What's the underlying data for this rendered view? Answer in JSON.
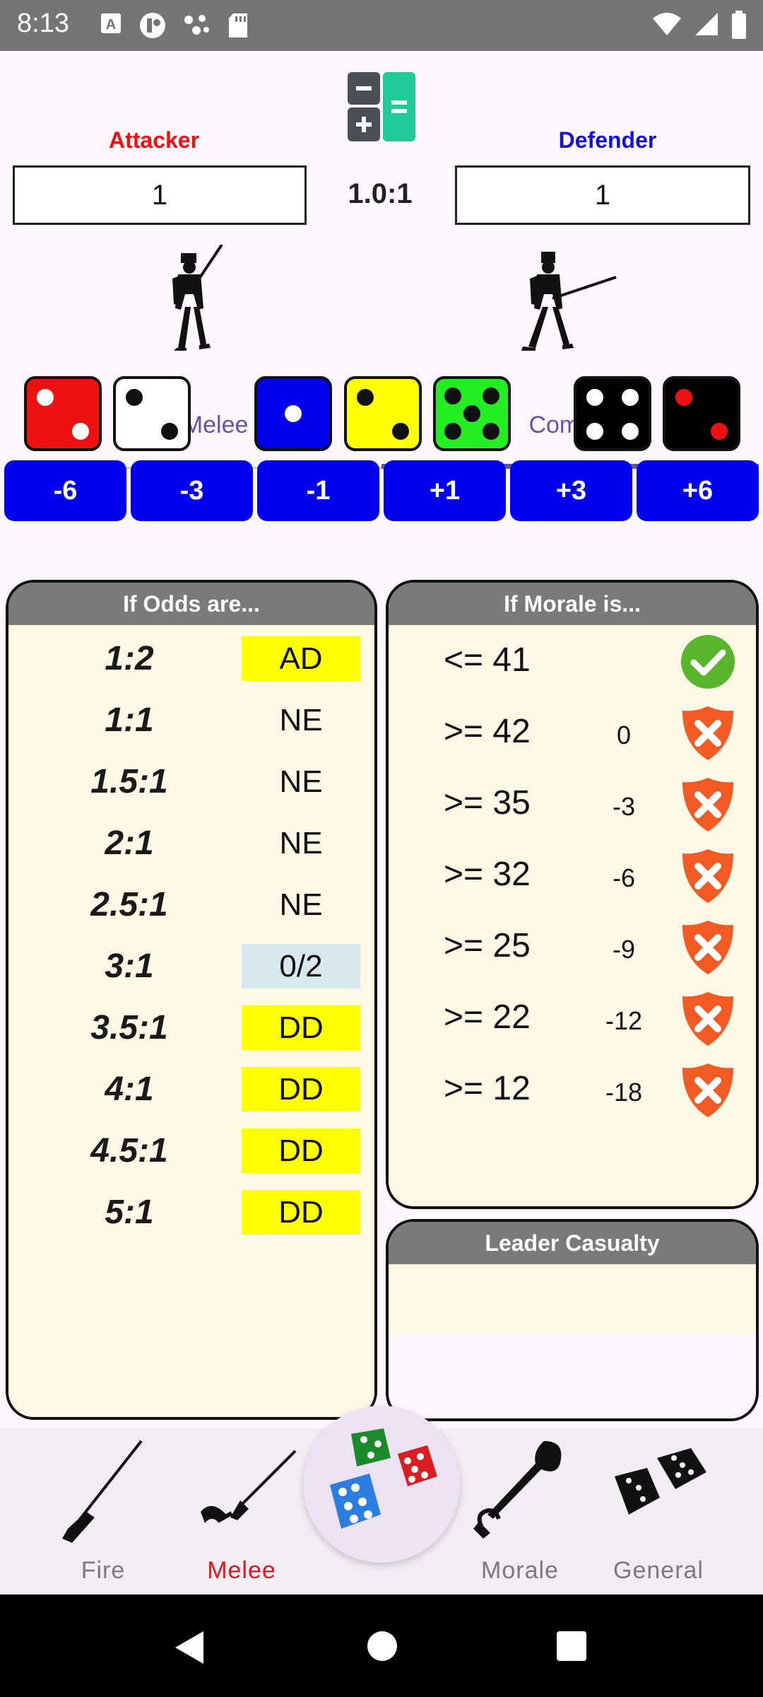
{
  "status_bar": {
    "time": "8:13",
    "icons": [
      "font-icon",
      "app-icon",
      "dots-icon",
      "sd-card-icon"
    ],
    "right_icons": [
      "wifi-icon",
      "signal-icon",
      "battery-icon"
    ]
  },
  "header": {
    "attacker_label": "Attacker",
    "defender_label": "Defender",
    "attacker_value": "1",
    "defender_value": "1",
    "ratio": "1.0:1",
    "calculator_icon": "calculator-icon",
    "attacker_color": "#ee1111",
    "defender_color": "#1111dd"
  },
  "tabs": [
    {
      "label": "Pre-Melee",
      "selected": false
    },
    {
      "label": "Combat",
      "selected": true
    }
  ],
  "dice": [
    {
      "color": "red",
      "value": 2
    },
    {
      "color": "white",
      "value": 2
    },
    {
      "color": "blue",
      "value": 1
    },
    {
      "color": "yellow",
      "value": 2
    },
    {
      "color": "green",
      "value": 5
    },
    {
      "color": "black",
      "value": 4
    },
    {
      "color": "black-red",
      "value": 2
    }
  ],
  "modifiers": [
    "-6",
    "-3",
    "-1",
    "+1",
    "+3",
    "+6"
  ],
  "odds_panel": {
    "title": "If Odds are...",
    "rows": [
      {
        "odds": "1:2",
        "result": "AD",
        "highlight": "#ffff00"
      },
      {
        "odds": "1:1",
        "result": "NE",
        "highlight": ""
      },
      {
        "odds": "1.5:1",
        "result": "NE",
        "highlight": ""
      },
      {
        "odds": "2:1",
        "result": "NE",
        "highlight": ""
      },
      {
        "odds": "2.5:1",
        "result": "NE",
        "highlight": ""
      },
      {
        "odds": "3:1",
        "result": "0/2",
        "highlight": "#d8e8f0"
      },
      {
        "odds": "3.5:1",
        "result": "DD",
        "highlight": "#ffff00"
      },
      {
        "odds": "4:1",
        "result": "DD",
        "highlight": "#ffff00"
      },
      {
        "odds": "4.5:1",
        "result": "DD",
        "highlight": "#ffff00"
      },
      {
        "odds": "5:1",
        "result": "DD",
        "highlight": "#ffff00"
      }
    ]
  },
  "morale_panel": {
    "title": "If Morale is...",
    "rows": [
      {
        "label": "<= 41",
        "mod": "",
        "icon": "check-circle-icon"
      },
      {
        "label": ">= 42",
        "mod": "0",
        "icon": "fail-shield-icon"
      },
      {
        "label": ">= 35",
        "mod": "-3",
        "icon": "fail-shield-icon"
      },
      {
        "label": ">= 32",
        "mod": "-6",
        "icon": "fail-shield-icon"
      },
      {
        "label": ">= 25",
        "mod": "-9",
        "icon": "fail-shield-icon"
      },
      {
        "label": ">= 22",
        "mod": "-12",
        "icon": "fail-shield-icon"
      },
      {
        "label": ">= 12",
        "mod": "-18",
        "icon": "fail-shield-icon"
      }
    ]
  },
  "leader_panel": {
    "title": "Leader Casualty"
  },
  "bottom_nav": {
    "items": [
      {
        "label": "Fire",
        "icon": "musket-icon",
        "active": false
      },
      {
        "label": "Melee",
        "icon": "bayonet-icon",
        "active": true
      },
      {
        "label": "Morale",
        "icon": "bugle-icon",
        "active": false
      },
      {
        "label": "General",
        "icon": "dice-icon",
        "active": false
      }
    ],
    "fab_icon": "roll-dice-icon",
    "active_color": "#e01818"
  },
  "system_nav": [
    "back-icon",
    "home-icon",
    "recents-icon"
  ]
}
